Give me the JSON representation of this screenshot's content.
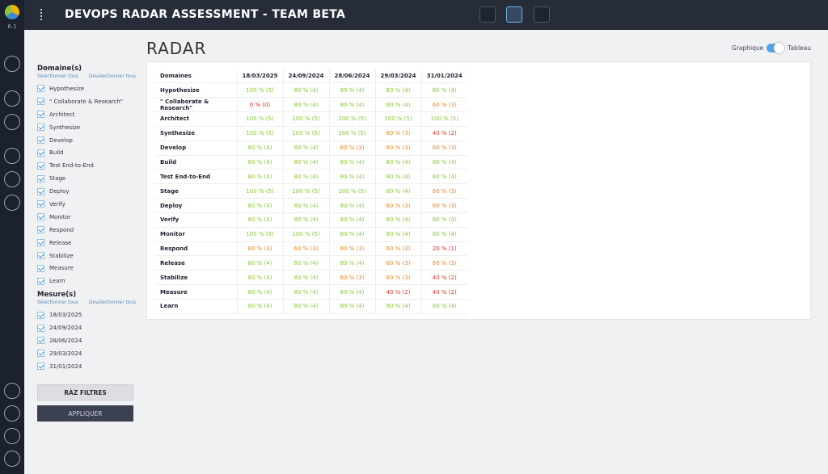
{
  "app": {
    "version": "6.1",
    "title": "DEVOPS RADAR ASSESSMENT - TEAM BETA"
  },
  "page": {
    "title": "RADAR",
    "view_left": "Graphique",
    "view_right": "Tableau"
  },
  "filters": {
    "domains_title": "Domaine(s)",
    "select_all": "Sélectionner tous",
    "deselect_all": "Désélectionner tous",
    "domains": [
      "Hypothesize",
      "\" Collaborate & Research\"",
      "Architect",
      "Synthesize",
      "Develop",
      "Build",
      "Test End-to-End",
      "Stage",
      "Deploy",
      "Verify",
      "Monitor",
      "Respond",
      "Release",
      "Stabilize",
      "Measure",
      "Learn"
    ],
    "measures_title": "Mesure(s)",
    "measures": [
      "18/03/2025",
      "24/09/2024",
      "28/06/2024",
      "29/03/2024",
      "31/01/2024"
    ],
    "reset": "RÀZ FILTRES",
    "apply": "APPLIQUER"
  },
  "table": {
    "header": [
      "Domaines",
      "18/03/2025",
      "24/09/2024",
      "28/06/2024",
      "29/03/2024",
      "31/01/2024"
    ],
    "rows": [
      {
        "label": "Hypothesize",
        "cells": [
          {
            "text": "100 % (5)",
            "color": "#8cc63f"
          },
          {
            "text": "80 % (4)",
            "color": "#8cc63f"
          },
          {
            "text": "80 % (4)",
            "color": "#8cc63f"
          },
          {
            "text": "80 % (4)",
            "color": "#8cc63f"
          },
          {
            "text": "80 % (4)",
            "color": "#8cc63f"
          }
        ]
      },
      {
        "label": "\" Collaborate & Research\"",
        "cells": [
          {
            "text": "0 % (0)",
            "color": "#e0312a"
          },
          {
            "text": "80 % (4)",
            "color": "#8cc63f"
          },
          {
            "text": "80 % (4)",
            "color": "#8cc63f"
          },
          {
            "text": "80 % (4)",
            "color": "#8cc63f"
          },
          {
            "text": "60 % (3)",
            "color": "#e8892b"
          }
        ]
      },
      {
        "label": "Architect",
        "cells": [
          {
            "text": "100 % (5)",
            "color": "#8cc63f"
          },
          {
            "text": "100 % (5)",
            "color": "#8cc63f"
          },
          {
            "text": "100 % (5)",
            "color": "#8cc63f"
          },
          {
            "text": "100 % (5)",
            "color": "#8cc63f"
          },
          {
            "text": "100 % (5)",
            "color": "#8cc63f"
          }
        ]
      },
      {
        "label": "Synthesize",
        "cells": [
          {
            "text": "100 % (5)",
            "color": "#8cc63f"
          },
          {
            "text": "100 % (5)",
            "color": "#8cc63f"
          },
          {
            "text": "100 % (5)",
            "color": "#8cc63f"
          },
          {
            "text": "60 % (3)",
            "color": "#e8892b"
          },
          {
            "text": "40 % (2)",
            "color": "#e0312a"
          }
        ]
      },
      {
        "label": "Develop",
        "cells": [
          {
            "text": "80 % (4)",
            "color": "#8cc63f"
          },
          {
            "text": "80 % (4)",
            "color": "#8cc63f"
          },
          {
            "text": "60 % (3)",
            "color": "#e8892b"
          },
          {
            "text": "60 % (3)",
            "color": "#e8892b"
          },
          {
            "text": "60 % (3)",
            "color": "#e8892b"
          }
        ]
      },
      {
        "label": "Build",
        "cells": [
          {
            "text": "80 % (4)",
            "color": "#8cc63f"
          },
          {
            "text": "80 % (4)",
            "color": "#8cc63f"
          },
          {
            "text": "80 % (4)",
            "color": "#8cc63f"
          },
          {
            "text": "80 % (4)",
            "color": "#8cc63f"
          },
          {
            "text": "80 % (4)",
            "color": "#8cc63f"
          }
        ]
      },
      {
        "label": "Test End-to-End",
        "cells": [
          {
            "text": "80 % (4)",
            "color": "#8cc63f"
          },
          {
            "text": "80 % (4)",
            "color": "#8cc63f"
          },
          {
            "text": "80 % (4)",
            "color": "#8cc63f"
          },
          {
            "text": "80 % (4)",
            "color": "#8cc63f"
          },
          {
            "text": "80 % (4)",
            "color": "#8cc63f"
          }
        ]
      },
      {
        "label": "Stage",
        "cells": [
          {
            "text": "100 % (5)",
            "color": "#8cc63f"
          },
          {
            "text": "100 % (5)",
            "color": "#8cc63f"
          },
          {
            "text": "100 % (5)",
            "color": "#8cc63f"
          },
          {
            "text": "80 % (4)",
            "color": "#8cc63f"
          },
          {
            "text": "60 % (3)",
            "color": "#e8892b"
          }
        ]
      },
      {
        "label": "Deploy",
        "cells": [
          {
            "text": "80 % (4)",
            "color": "#8cc63f"
          },
          {
            "text": "80 % (4)",
            "color": "#8cc63f"
          },
          {
            "text": "80 % (4)",
            "color": "#8cc63f"
          },
          {
            "text": "60 % (3)",
            "color": "#e8892b"
          },
          {
            "text": "60 % (3)",
            "color": "#e8892b"
          }
        ]
      },
      {
        "label": "Verify",
        "cells": [
          {
            "text": "80 % (4)",
            "color": "#8cc63f"
          },
          {
            "text": "80 % (4)",
            "color": "#8cc63f"
          },
          {
            "text": "80 % (4)",
            "color": "#8cc63f"
          },
          {
            "text": "80 % (4)",
            "color": "#8cc63f"
          },
          {
            "text": "80 % (4)",
            "color": "#8cc63f"
          }
        ]
      },
      {
        "label": "Monitor",
        "cells": [
          {
            "text": "100 % (5)",
            "color": "#8cc63f"
          },
          {
            "text": "100 % (5)",
            "color": "#8cc63f"
          },
          {
            "text": "80 % (4)",
            "color": "#8cc63f"
          },
          {
            "text": "80 % (4)",
            "color": "#8cc63f"
          },
          {
            "text": "80 % (4)",
            "color": "#8cc63f"
          }
        ]
      },
      {
        "label": "Respond",
        "cells": [
          {
            "text": "60 % (3)",
            "color": "#e8892b"
          },
          {
            "text": "60 % (3)",
            "color": "#e8892b"
          },
          {
            "text": "60 % (3)",
            "color": "#e8892b"
          },
          {
            "text": "60 % (3)",
            "color": "#e8892b"
          },
          {
            "text": "20 % (1)",
            "color": "#e0312a"
          }
        ]
      },
      {
        "label": "Release",
        "cells": [
          {
            "text": "80 % (4)",
            "color": "#8cc63f"
          },
          {
            "text": "80 % (4)",
            "color": "#8cc63f"
          },
          {
            "text": "80 % (4)",
            "color": "#8cc63f"
          },
          {
            "text": "60 % (3)",
            "color": "#e8892b"
          },
          {
            "text": "60 % (3)",
            "color": "#e8892b"
          }
        ]
      },
      {
        "label": "Stabilize",
        "cells": [
          {
            "text": "80 % (4)",
            "color": "#8cc63f"
          },
          {
            "text": "80 % (4)",
            "color": "#8cc63f"
          },
          {
            "text": "60 % (3)",
            "color": "#e8892b"
          },
          {
            "text": "60 % (3)",
            "color": "#e8892b"
          },
          {
            "text": "40 % (2)",
            "color": "#e0312a"
          }
        ]
      },
      {
        "label": "Measure",
        "cells": [
          {
            "text": "80 % (4)",
            "color": "#8cc63f"
          },
          {
            "text": "80 % (4)",
            "color": "#8cc63f"
          },
          {
            "text": "80 % (4)",
            "color": "#8cc63f"
          },
          {
            "text": "40 % (2)",
            "color": "#e0312a"
          },
          {
            "text": "40 % (2)",
            "color": "#e0312a"
          }
        ]
      },
      {
        "label": "Learn",
        "cells": [
          {
            "text": "80 % (4)",
            "color": "#8cc63f"
          },
          {
            "text": "80 % (4)",
            "color": "#8cc63f"
          },
          {
            "text": "80 % (4)",
            "color": "#8cc63f"
          },
          {
            "text": "80 % (4)",
            "color": "#8cc63f"
          },
          {
            "text": "80 % (4)",
            "color": "#8cc63f"
          }
        ]
      }
    ]
  }
}
